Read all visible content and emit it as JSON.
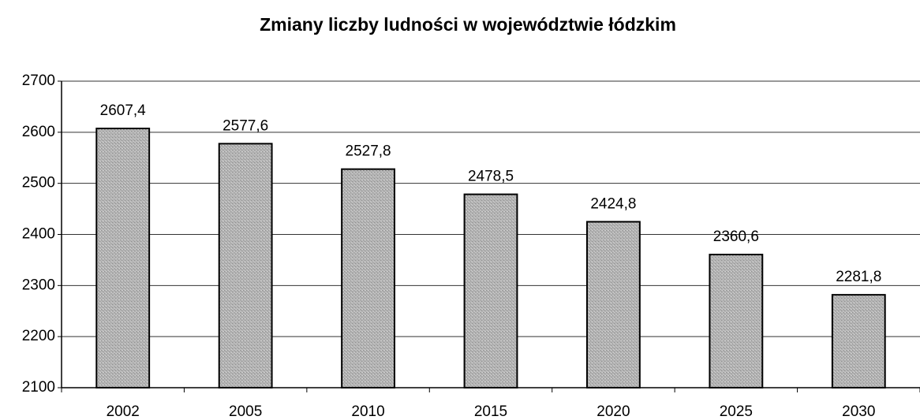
{
  "chart_data": {
    "type": "bar",
    "title": "Zmiany liczby ludności w województwie łódzkim",
    "categories": [
      "2002",
      "2005",
      "2010",
      "2015",
      "2020",
      "2025",
      "2030"
    ],
    "values": [
      2607.4,
      2577.6,
      2527.8,
      2478.5,
      2424.8,
      2360.6,
      2281.8
    ],
    "value_labels": [
      "2607,4",
      "2577,6",
      "2527,8",
      "2478,5",
      "2424,8",
      "2360,6",
      "2281,8"
    ],
    "color": "#b3b3b3",
    "ylim": [
      2100,
      2700
    ],
    "yticks": [
      2100,
      2200,
      2300,
      2400,
      2500,
      2600,
      2700
    ],
    "grid": true
  }
}
